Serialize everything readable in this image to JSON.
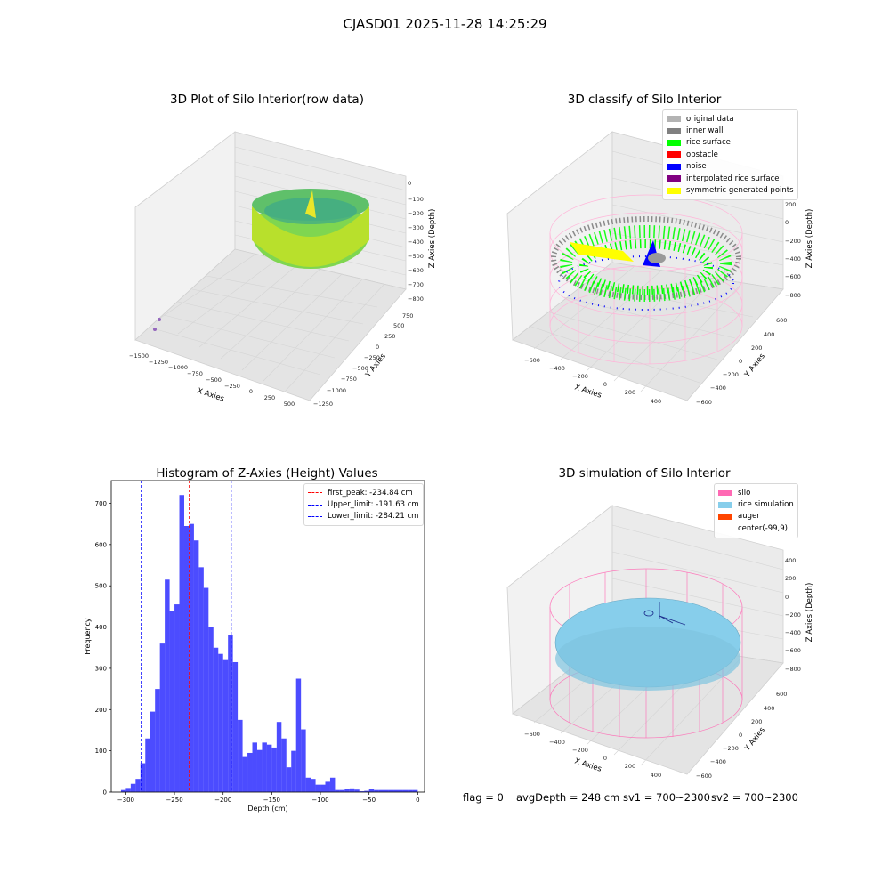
{
  "figure": {
    "suptitle": "CJASD01 2025-11-28 14:25:29",
    "status": {
      "flag": "flag = 0",
      "avg_depth": "avgDepth = 248 cm",
      "sv1": "sv1 = 700~2300",
      "sv2": "sv2 = 700~2300"
    }
  },
  "panels": {
    "raw": {
      "title": "3D Plot of Silo Interior(row data)",
      "xlabel": "X Axies",
      "ylabel": "Y Axies",
      "zlabel": "Z Axies (Depth)",
      "xticks": [
        "−1500",
        "−1250",
        "−1000",
        "−750",
        "−500",
        "−250",
        "0",
        "250",
        "500"
      ],
      "yticks": [
        "750",
        "500",
        "250",
        "0",
        "−250",
        "−500",
        "−750",
        "−1000",
        "−1250"
      ],
      "zticks": [
        "0",
        "−100",
        "−200",
        "−300",
        "−400",
        "−500",
        "−600",
        "−700",
        "−800"
      ]
    },
    "classify": {
      "title": "3D classify of Silo Interior",
      "xlabel": "X Axies",
      "ylabel": "Y Axies",
      "zlabel": "Z Axies (Depth)",
      "xticks": [
        "−600",
        "−400",
        "−200",
        "0",
        "200",
        "400"
      ],
      "yticks": [
        "600",
        "400",
        "200",
        "0",
        "−200",
        "−400",
        "−600"
      ],
      "zticks": [
        "400",
        "200",
        "0",
        "−200",
        "−400",
        "−600",
        "−800"
      ],
      "legend": [
        {
          "label": "original data",
          "color": "#b3b3b3"
        },
        {
          "label": "inner wall",
          "color": "#808080"
        },
        {
          "label": "rice surface",
          "color": "#00ff00"
        },
        {
          "label": "obstacle",
          "color": "#ff0000"
        },
        {
          "label": "noise",
          "color": "#0000ff"
        },
        {
          "label": "interpolated rice surface",
          "color": "#800080"
        },
        {
          "label": "symmetric generated points",
          "color": "#ffff00"
        }
      ]
    },
    "simulation": {
      "title": "3D simulation of Silo Interior",
      "xlabel": "X Axies",
      "ylabel": "Y Axies",
      "zlabel": "Z Axies (Depth)",
      "xticks": [
        "−600",
        "−400",
        "−200",
        "0",
        "200",
        "400"
      ],
      "yticks": [
        "600",
        "400",
        "200",
        "0",
        "−200",
        "−400",
        "−600"
      ],
      "zticks": [
        "400",
        "200",
        "0",
        "−200",
        "−400",
        "−600",
        "−800"
      ],
      "legend": [
        {
          "label": "silo",
          "color": "#ff69b4"
        },
        {
          "label": "rice simulation",
          "color": "#87ceeb"
        },
        {
          "label": "auger",
          "color": "#ff4500"
        },
        {
          "label": "center(-99,9)",
          "color": "none"
        }
      ]
    }
  },
  "chart_data": [
    {
      "type": "bar",
      "title": "Histogram of Z-Axies (Height) Values",
      "xlabel": "Depth (cm)",
      "ylabel": "Frequency",
      "xlim": [
        -315,
        7
      ],
      "ylim": [
        0,
        755
      ],
      "xticks": [
        -300,
        -250,
        -200,
        -150,
        -100,
        -50,
        0
      ],
      "yticks": [
        0,
        100,
        200,
        300,
        400,
        500,
        600,
        700
      ],
      "bar_color": "#0000ff",
      "bin_width": 5,
      "bin_starts": [
        -305,
        -300,
        -295,
        -290,
        -285,
        -280,
        -275,
        -270,
        -265,
        -260,
        -255,
        -250,
        -245,
        -240,
        -235,
        -230,
        -225,
        -220,
        -215,
        -210,
        -205,
        -200,
        -195,
        -190,
        -185,
        -180,
        -175,
        -170,
        -165,
        -160,
        -155,
        -150,
        -145,
        -140,
        -135,
        -130,
        -125,
        -120,
        -115,
        -110,
        -105,
        -100,
        -95,
        -90,
        -85,
        -80,
        -75,
        -70,
        -65,
        -60,
        -55,
        -50,
        -45,
        -40,
        -35,
        -30,
        -25,
        -20,
        -15,
        -10,
        -5
      ],
      "values": [
        5,
        10,
        20,
        32,
        70,
        130,
        195,
        250,
        360,
        515,
        440,
        455,
        720,
        645,
        650,
        610,
        545,
        495,
        400,
        350,
        335,
        320,
        380,
        315,
        175,
        85,
        95,
        120,
        102,
        120,
        115,
        108,
        170,
        130,
        60,
        100,
        275,
        152,
        35,
        32,
        18,
        18,
        25,
        35,
        5,
        5,
        7,
        9,
        6,
        2,
        3,
        7,
        5,
        5,
        5,
        5,
        5,
        5,
        5,
        5,
        5
      ],
      "reference_lines": [
        {
          "label": "first_peak: -234.84 cm",
          "x": -234.84,
          "color": "#ff0000"
        },
        {
          "label": "Upper_limit: -191.63 cm",
          "x": -191.63,
          "color": "#0000ff"
        },
        {
          "label": "Lower_limit: -284.21 cm",
          "x": -284.21,
          "color": "#0000ff"
        }
      ],
      "legend_position": "upper right"
    }
  ]
}
